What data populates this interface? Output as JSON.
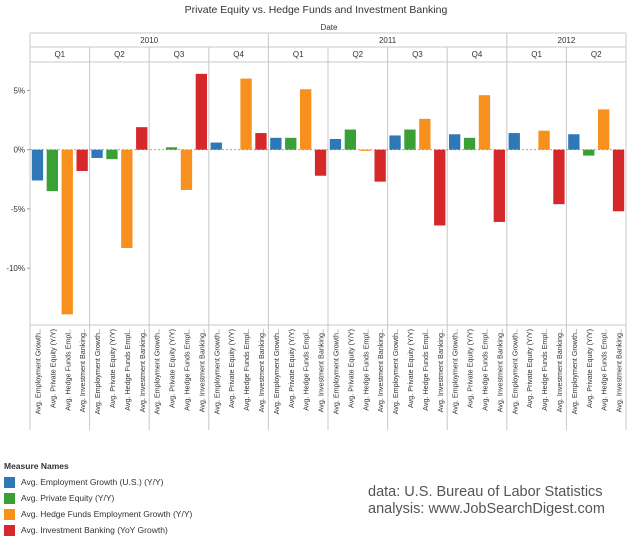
{
  "chart_data": {
    "type": "bar",
    "title": "Private Equity vs. Hedge Funds and Investment Banking",
    "column_axis_title": "Date",
    "years": [
      {
        "label": "2010",
        "quarters": [
          "Q1",
          "Q2",
          "Q3",
          "Q4"
        ]
      },
      {
        "label": "2011",
        "quarters": [
          "Q1",
          "Q2",
          "Q3",
          "Q4"
        ]
      },
      {
        "label": "2012",
        "quarters": [
          "Q1",
          "Q2"
        ]
      }
    ],
    "categories": [
      "2010 Q1",
      "2010 Q2",
      "2010 Q3",
      "2010 Q4",
      "2011 Q1",
      "2011 Q2",
      "2011 Q3",
      "2011 Q4",
      "2012 Q1",
      "2012 Q2"
    ],
    "series": [
      {
        "name": "Avg. Employment Growth (U.S.) (Y/Y)",
        "short_label": "Avg. Employment Growth..",
        "color": "#2e78b8",
        "values": [
          -2.6,
          -0.7,
          0.0,
          0.6,
          1.0,
          0.9,
          1.2,
          1.3,
          1.4,
          1.3
        ]
      },
      {
        "name": "Avg. Private Equity (Y/Y)",
        "short_label": "Avg. Private Equity (Y/Y)",
        "color": "#3aa036",
        "values": [
          -3.5,
          -0.8,
          0.2,
          0.0,
          1.0,
          1.7,
          1.7,
          1.0,
          0.0,
          -0.5
        ]
      },
      {
        "name": "Avg. Hedge Funds Employment Growth (Y/Y)",
        "short_label": "Avg. Hedge Funds Empl..",
        "color": "#f8901e",
        "values": [
          -13.9,
          -8.3,
          -3.4,
          6.0,
          5.1,
          -0.1,
          2.6,
          4.6,
          1.6,
          3.4
        ]
      },
      {
        "name": "Avg. Investment Banking (YoY Growth)",
        "short_label": "Avg. Investment Banking..",
        "color": "#d6282b",
        "values": [
          -1.8,
          1.9,
          6.4,
          1.4,
          -2.2,
          -2.7,
          -6.4,
          -6.1,
          -4.6,
          -5.2
        ]
      }
    ],
    "y_ticks": [
      5,
      0,
      -5,
      -10
    ],
    "y_tick_labels": [
      "5%",
      "0%",
      "-5%",
      "-10%"
    ],
    "ylim": [
      -14.8,
      7.4
    ],
    "ylabel": "",
    "grid": false,
    "legend_position": "bottom-left"
  },
  "legend": {
    "title": "Measure Names",
    "items": [
      {
        "label": "Avg. Employment Growth (U.S.) (Y/Y)",
        "color": "#2e78b8"
      },
      {
        "label": "Avg. Private Equity (Y/Y)",
        "color": "#3aa036"
      },
      {
        "label": "Avg. Hedge Funds Employment Growth (Y/Y)",
        "color": "#f8901e"
      },
      {
        "label": "Avg. Investment Banking (YoY Growth)",
        "color": "#d6282b"
      }
    ]
  },
  "source": {
    "line1": "data: U.S. Bureau of Labor Statistics",
    "line2": "analysis: www.JobSearchDigest.com"
  }
}
